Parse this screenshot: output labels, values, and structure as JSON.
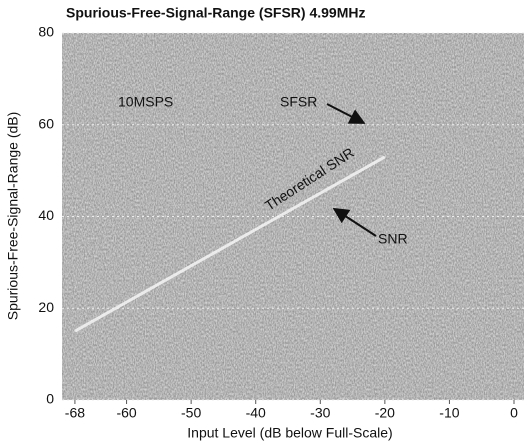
{
  "chart_data": {
    "type": "line",
    "title": "Spurious-Free-Signal-Range (SFSR) 4.99MHz",
    "x_label": "Input Level (dB below Full-Scale)",
    "y_label": "Spurious-Free-Signal-Range (dB)",
    "annotations": [
      "10MSPS",
      "SFSR",
      "Theoretical SNR",
      "SNR"
    ],
    "x": [
      -68,
      -20
    ],
    "series": [
      {
        "name": "Theoretical SNR",
        "color": "#f4f4f4",
        "values": [
          15,
          53
        ]
      }
    ],
    "xlim": [
      -70,
      0
    ],
    "xticks": [
      -68,
      -60,
      -50,
      -40,
      -30,
      -20,
      -10,
      0
    ],
    "ylim": [
      0,
      80
    ],
    "yticks": [
      0,
      20,
      40,
      60,
      80
    ],
    "grid": true
  }
}
